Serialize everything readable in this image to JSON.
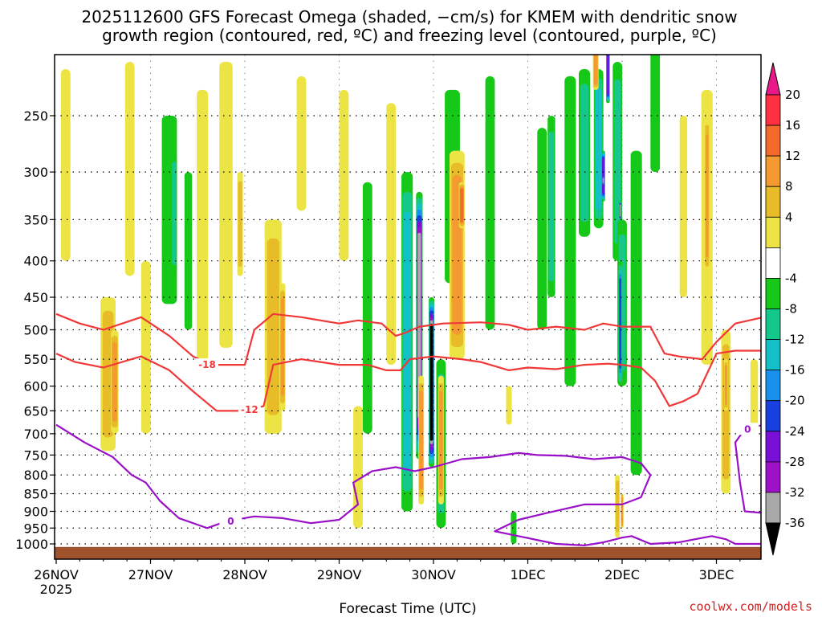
{
  "chart_data": {
    "type": "heatmap",
    "title_line1": "2025112600 GFS Forecast Omega (shaded, −cm/s) for KMEM with dendritic snow",
    "title_line2": "growth region (contoured, red, ºC) and freezing level (contoured, purple, ºC)",
    "xlabel": "Forecast Time (UTC)",
    "ylabel": "",
    "credit": "coolwx.com/models",
    "x_ticks": [
      {
        "label": "26NOV",
        "sub": "2025",
        "day": 0
      },
      {
        "label": "27NOV",
        "sub": "",
        "day": 1
      },
      {
        "label": "28NOV",
        "sub": "",
        "day": 2
      },
      {
        "label": "29NOV",
        "sub": "",
        "day": 3
      },
      {
        "label": "30NOV",
        "sub": "",
        "day": 4
      },
      {
        "label": "1DEC",
        "sub": "",
        "day": 5
      },
      {
        "label": "2DEC",
        "sub": "",
        "day": 6
      },
      {
        "label": "3DEC",
        "sub": "",
        "day": 7
      }
    ],
    "xlim_days": [
      0,
      7.5
    ],
    "y_ticks": [
      250,
      300,
      350,
      400,
      450,
      500,
      550,
      600,
      650,
      700,
      750,
      800,
      850,
      900,
      950,
      1000
    ],
    "ylim_hpa": [
      200,
      1025
    ],
    "colorbar": {
      "labels": [
        20,
        16,
        12,
        8,
        4,
        -4,
        -8,
        -12,
        -16,
        -20,
        -24,
        -28,
        -32,
        -36
      ],
      "bins": [
        {
          "range": "16 to 20",
          "color": "#ff3040"
        },
        {
          "range": "12 to 16",
          "color": "#f46a2a"
        },
        {
          "range": "8 to 12",
          "color": "#f59a30"
        },
        {
          "range": "4 to 8",
          "color": "#e8bc28"
        },
        {
          "range": "0 to 4",
          "color": "#ece444"
        },
        {
          "range": "-4 to 4",
          "color": "#ffffff"
        },
        {
          "range": "-8 to -4",
          "color": "#16c818"
        },
        {
          "range": "-12 to -8",
          "color": "#14c88c"
        },
        {
          "range": "-16 to -12",
          "color": "#14c0c8"
        },
        {
          "range": "-20 to -16",
          "color": "#1890ee"
        },
        {
          "range": "-24 to -20",
          "color": "#1840e0"
        },
        {
          "range": "-28 to -24",
          "color": "#7a10d8"
        },
        {
          "range": "-32 to -28",
          "color": "#a010c8"
        },
        {
          "range": "-36 to -32",
          "color": "#a8a8a8"
        }
      ],
      "over_color": "#e81888",
      "under_color": "#000000"
    },
    "omega_features": [
      {
        "day": 0.1,
        "p_top": 215,
        "p_bot": 400,
        "val": 3,
        "w": 0.05
      },
      {
        "day": 0.55,
        "p_top": 450,
        "p_bot": 740,
        "val": 6,
        "w": 0.08
      },
      {
        "day": 0.62,
        "p_top": 500,
        "p_bot": 700,
        "val": 10,
        "w": 0.04
      },
      {
        "day": 0.78,
        "p_top": 210,
        "p_bot": 420,
        "val": 3,
        "w": 0.05
      },
      {
        "day": 0.95,
        "p_top": 400,
        "p_bot": 700,
        "val": 4,
        "w": 0.05
      },
      {
        "day": 1.2,
        "p_top": 250,
        "p_bot": 460,
        "val": -6,
        "w": 0.08
      },
      {
        "day": 1.25,
        "p_top": 280,
        "p_bot": 420,
        "val": -13,
        "w": 0.03
      },
      {
        "day": 1.4,
        "p_top": 300,
        "p_bot": 500,
        "val": -6,
        "w": 0.04
      },
      {
        "day": 1.55,
        "p_top": 230,
        "p_bot": 560,
        "val": 4,
        "w": 0.06
      },
      {
        "day": 1.8,
        "p_top": 210,
        "p_bot": 530,
        "val": 5,
        "w": 0.07
      },
      {
        "day": 1.95,
        "p_top": 300,
        "p_bot": 420,
        "val": 9,
        "w": 0.03
      },
      {
        "day": 2.3,
        "p_top": 350,
        "p_bot": 700,
        "val": 6,
        "w": 0.09
      },
      {
        "day": 2.4,
        "p_top": 430,
        "p_bot": 650,
        "val": 10,
        "w": 0.03
      },
      {
        "day": 2.6,
        "p_top": 220,
        "p_bot": 340,
        "val": 3,
        "w": 0.05
      },
      {
        "day": 3.05,
        "p_top": 230,
        "p_bot": 400,
        "val": 5,
        "w": 0.05
      },
      {
        "day": 3.3,
        "p_top": 310,
        "p_bot": 700,
        "val": -6,
        "w": 0.05
      },
      {
        "day": 3.55,
        "p_top": 240,
        "p_bot": 560,
        "val": 4,
        "w": 0.05
      },
      {
        "day": 3.72,
        "p_top": 300,
        "p_bot": 900,
        "val": -14,
        "w": 0.06
      },
      {
        "day": 3.85,
        "p_top": 320,
        "p_bot": 760,
        "val": -34,
        "w": 0.035
      },
      {
        "day": 3.98,
        "p_top": 450,
        "p_bot": 780,
        "val": -40,
        "w": 0.03
      },
      {
        "day": 4.08,
        "p_top": 550,
        "p_bot": 950,
        "val": -10,
        "w": 0.05
      },
      {
        "day": 3.87,
        "p_top": 580,
        "p_bot": 880,
        "val": 13,
        "w": 0.03
      },
      {
        "day": 4.08,
        "p_top": 580,
        "p_bot": 880,
        "val": 11,
        "w": 0.03
      },
      {
        "day": 3.2,
        "p_top": 640,
        "p_bot": 950,
        "val": 5,
        "w": 0.05
      },
      {
        "day": 4.2,
        "p_top": 230,
        "p_bot": 430,
        "val": -7,
        "w": 0.08
      },
      {
        "day": 4.25,
        "p_top": 280,
        "p_bot": 550,
        "val": 10,
        "w": 0.08
      },
      {
        "day": 4.3,
        "p_top": 310,
        "p_bot": 360,
        "val": 17,
        "w": 0.03
      },
      {
        "day": 4.6,
        "p_top": 220,
        "p_bot": 500,
        "val": -6,
        "w": 0.05
      },
      {
        "day": 4.8,
        "p_top": 600,
        "p_bot": 680,
        "val": 4,
        "w": 0.03
      },
      {
        "day": 5.15,
        "p_top": 260,
        "p_bot": 500,
        "val": -6,
        "w": 0.05
      },
      {
        "day": 5.25,
        "p_top": 250,
        "p_bot": 450,
        "val": -10,
        "w": 0.04
      },
      {
        "day": 5.45,
        "p_top": 220,
        "p_bot": 600,
        "val": -7,
        "w": 0.06
      },
      {
        "day": 5.6,
        "p_top": 215,
        "p_bot": 370,
        "val": -12,
        "w": 0.06
      },
      {
        "day": 5.75,
        "p_top": 215,
        "p_bot": 360,
        "val": -17,
        "w": 0.05
      },
      {
        "day": 5.8,
        "p_top": 280,
        "p_bot": 330,
        "val": -28,
        "w": 0.02
      },
      {
        "day": 5.8,
        "p_top": 305,
        "p_bot": 312,
        "val": -34,
        "w": 0.015
      },
      {
        "day": 5.72,
        "p_top": 200,
        "p_bot": 230,
        "val": 12,
        "w": 0.03
      },
      {
        "day": 5.85,
        "p_top": 200,
        "p_bot": 240,
        "val": -26,
        "w": 0.02
      },
      {
        "day": 5.95,
        "p_top": 210,
        "p_bot": 400,
        "val": -10,
        "w": 0.05
      },
      {
        "day": 6.0,
        "p_top": 350,
        "p_bot": 600,
        "val": -12,
        "w": 0.05
      },
      {
        "day": 5.98,
        "p_top": 330,
        "p_bot": 350,
        "val": -34,
        "w": 0.015
      },
      {
        "day": 5.98,
        "p_top": 400,
        "p_bot": 600,
        "val": -22,
        "w": 0.02
      },
      {
        "day": 6.15,
        "p_top": 280,
        "p_bot": 800,
        "val": -7,
        "w": 0.06
      },
      {
        "day": 6.35,
        "p_top": 200,
        "p_bot": 300,
        "val": -8,
        "w": 0.05
      },
      {
        "day": 5.95,
        "p_top": 800,
        "p_bot": 980,
        "val": 8,
        "w": 0.025
      },
      {
        "day": 6.0,
        "p_top": 850,
        "p_bot": 950,
        "val": 13,
        "w": 0.015
      },
      {
        "day": 6.65,
        "p_top": 250,
        "p_bot": 450,
        "val": 4,
        "w": 0.04
      },
      {
        "day": 6.9,
        "p_top": 230,
        "p_bot": 560,
        "val": 5,
        "w": 0.06
      },
      {
        "day": 6.9,
        "p_top": 250,
        "p_bot": 420,
        "val": 11,
        "w": 0.025
      },
      {
        "day": 7.1,
        "p_top": 500,
        "p_bot": 850,
        "val": 6,
        "w": 0.05
      },
      {
        "day": 7.1,
        "p_top": 550,
        "p_bot": 650,
        "val": 11,
        "w": 0.02
      },
      {
        "day": 7.4,
        "p_top": 550,
        "p_bot": 700,
        "val": 4,
        "w": 0.04
      },
      {
        "day": 4.85,
        "p_top": 900,
        "p_bot": 1000,
        "val": -7,
        "w": 0.03
      }
    ],
    "contours_dgz": [
      {
        "level": -18,
        "label": "-18",
        "points": [
          [
            0,
            475
          ],
          [
            0.25,
            490
          ],
          [
            0.5,
            500
          ],
          [
            0.9,
            480
          ],
          [
            1.2,
            510
          ],
          [
            1.45,
            545
          ],
          [
            1.65,
            560
          ],
          [
            2.0,
            560
          ],
          [
            2.1,
            500
          ],
          [
            2.3,
            475
          ],
          [
            2.6,
            480
          ],
          [
            3.0,
            490
          ],
          [
            3.2,
            485
          ],
          [
            3.45,
            490
          ],
          [
            3.6,
            510
          ],
          [
            3.7,
            505
          ],
          [
            3.85,
            495
          ],
          [
            4.1,
            490
          ],
          [
            4.5,
            488
          ],
          [
            4.8,
            492
          ],
          [
            5.0,
            500
          ],
          [
            5.3,
            495
          ],
          [
            5.6,
            500
          ],
          [
            5.8,
            490
          ],
          [
            6.0,
            495
          ],
          [
            6.3,
            495
          ],
          [
            6.45,
            540
          ],
          [
            6.6,
            545
          ],
          [
            6.85,
            550
          ],
          [
            7.0,
            520
          ],
          [
            7.2,
            490
          ],
          [
            7.5,
            480
          ]
        ],
        "label_day": 1.6,
        "label_p": 560
      },
      {
        "level": -12,
        "label": "-12",
        "points": [
          [
            0,
            540
          ],
          [
            0.2,
            555
          ],
          [
            0.5,
            565
          ],
          [
            0.9,
            545
          ],
          [
            1.2,
            570
          ],
          [
            1.45,
            610
          ],
          [
            1.7,
            650
          ],
          [
            2.0,
            650
          ],
          [
            2.2,
            640
          ],
          [
            2.3,
            560
          ],
          [
            2.6,
            550
          ],
          [
            3.0,
            560
          ],
          [
            3.3,
            560
          ],
          [
            3.5,
            570
          ],
          [
            3.65,
            570
          ],
          [
            3.75,
            550
          ],
          [
            4.0,
            545
          ],
          [
            4.3,
            550
          ],
          [
            4.5,
            555
          ],
          [
            4.8,
            570
          ],
          [
            5.0,
            565
          ],
          [
            5.3,
            568
          ],
          [
            5.6,
            560
          ],
          [
            5.85,
            558
          ],
          [
            6.0,
            560
          ],
          [
            6.2,
            565
          ],
          [
            6.35,
            590
          ],
          [
            6.5,
            640
          ],
          [
            6.65,
            630
          ],
          [
            6.8,
            615
          ],
          [
            7.0,
            540
          ],
          [
            7.2,
            535
          ],
          [
            7.5,
            535
          ]
        ],
        "label_day": 2.05,
        "label_p": 648
      }
    ],
    "contours_freezing": [
      {
        "level": 0,
        "label": "0",
        "points": [
          [
            0,
            680
          ],
          [
            0.3,
            720
          ],
          [
            0.6,
            755
          ],
          [
            0.8,
            800
          ],
          [
            0.95,
            820
          ],
          [
            1.1,
            870
          ],
          [
            1.3,
            920
          ],
          [
            1.6,
            950
          ],
          [
            1.8,
            930
          ],
          [
            2.1,
            915
          ],
          [
            2.4,
            920
          ],
          [
            2.7,
            935
          ],
          [
            3.0,
            925
          ],
          [
            3.2,
            880
          ],
          [
            3.15,
            820
          ],
          [
            3.35,
            790
          ],
          [
            3.6,
            780
          ],
          [
            3.8,
            790
          ],
          [
            4.0,
            780
          ],
          [
            4.3,
            760
          ],
          [
            4.6,
            755
          ],
          [
            4.9,
            745
          ],
          [
            5.1,
            750
          ],
          [
            5.4,
            752
          ],
          [
            5.7,
            760
          ],
          [
            6.0,
            755
          ],
          [
            6.2,
            770
          ],
          [
            6.3,
            800
          ],
          [
            6.2,
            860
          ],
          [
            6.0,
            880
          ],
          [
            5.6,
            880
          ],
          [
            5.2,
            905
          ],
          [
            4.9,
            925
          ],
          [
            4.65,
            960
          ],
          [
            4.9,
            975
          ],
          [
            5.3,
            1000
          ],
          [
            5.6,
            1005
          ],
          [
            5.8,
            995
          ],
          [
            6.0,
            980
          ],
          [
            6.1,
            975
          ],
          [
            6.3,
            1000
          ],
          [
            6.6,
            995
          ],
          [
            6.95,
            975
          ],
          [
            7.1,
            985
          ],
          [
            7.2,
            1000
          ],
          [
            7.5,
            1000
          ]
        ],
        "label_day": 1.85,
        "label_p": 930
      },
      {
        "level": 0,
        "label": "0",
        "points": [
          [
            7.5,
            905
          ],
          [
            7.3,
            900
          ],
          [
            7.25,
            820
          ],
          [
            7.2,
            720
          ],
          [
            7.3,
            690
          ],
          [
            7.5,
            680
          ]
        ],
        "label_day": 7.33,
        "label_p": 690
      }
    ],
    "terrain_p": 1010
  }
}
